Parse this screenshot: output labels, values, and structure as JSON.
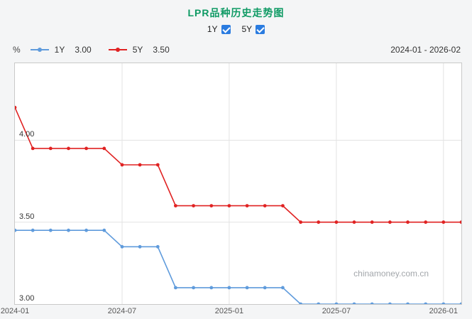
{
  "title": "LPR品种历史走势图",
  "colors": {
    "title": "#0e9a64",
    "checkbox": "#2b7ce0",
    "series_1y": "#5f9bdc",
    "series_5y": "#e02222"
  },
  "controls": {
    "toggles": [
      {
        "label": "1Y",
        "checked": true
      },
      {
        "label": "5Y",
        "checked": true
      }
    ]
  },
  "legend": {
    "unit": "%",
    "items": [
      {
        "name": "1Y",
        "value": "3.00",
        "color": "#5f9bdc"
      },
      {
        "name": "5Y",
        "value": "3.50",
        "color": "#e02222"
      }
    ],
    "date_range": "2024-01 - 2026-02"
  },
  "watermark": "chinamoney.com.cn",
  "chart_data": {
    "type": "line",
    "title": "LPR品种历史走势图",
    "xlabel": "",
    "ylabel": "%",
    "x": [
      "2024-01",
      "2024-02",
      "2024-03",
      "2024-04",
      "2024-05",
      "2024-06",
      "2024-07",
      "2024-08",
      "2024-09",
      "2024-10",
      "2024-11",
      "2024-12",
      "2025-01",
      "2025-02",
      "2025-03",
      "2025-04",
      "2025-05",
      "2025-06",
      "2025-07",
      "2025-08",
      "2025-09",
      "2025-10",
      "2025-11",
      "2025-12",
      "2026-01",
      "2026-02"
    ],
    "series": [
      {
        "name": "1Y",
        "color": "#5f9bdc",
        "values": [
          3.45,
          3.45,
          3.45,
          3.45,
          3.45,
          3.45,
          3.35,
          3.35,
          3.35,
          3.1,
          3.1,
          3.1,
          3.1,
          3.1,
          3.1,
          3.1,
          3.0,
          3.0,
          3.0,
          3.0,
          3.0,
          3.0,
          3.0,
          3.0,
          3.0,
          3.0
        ]
      },
      {
        "name": "5Y",
        "color": "#e02222",
        "values": [
          4.2,
          3.95,
          3.95,
          3.95,
          3.95,
          3.95,
          3.85,
          3.85,
          3.85,
          3.6,
          3.6,
          3.6,
          3.6,
          3.6,
          3.6,
          3.6,
          3.5,
          3.5,
          3.5,
          3.5,
          3.5,
          3.5,
          3.5,
          3.5,
          3.5,
          3.5
        ]
      }
    ],
    "ylim": [
      3.0,
      4.47
    ],
    "yticks": [
      3.0,
      3.5,
      4.0
    ],
    "ytick_labels": [
      "3.00",
      "3.50",
      "4.00"
    ],
    "xticks": [
      "2024-01",
      "2024-07",
      "2025-01",
      "2025-07",
      "2026-01"
    ],
    "grid": true,
    "legend_position": "top"
  }
}
